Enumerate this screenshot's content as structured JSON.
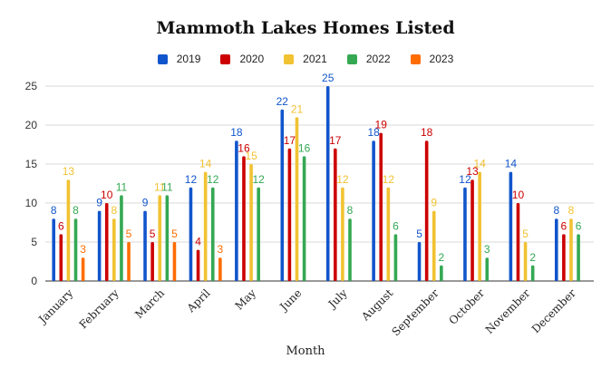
{
  "chart_data": {
    "type": "bar",
    "title": "Mammoth Lakes Homes Listed",
    "xlabel": "Month",
    "ylabel": "",
    "ylim": [
      0,
      25
    ],
    "yticks": [
      0,
      5,
      10,
      15,
      20,
      25
    ],
    "grid": true,
    "legend_position": "top",
    "categories": [
      "January",
      "February",
      "March",
      "April",
      "May",
      "June",
      "July",
      "August",
      "September",
      "October",
      "November",
      "December"
    ],
    "series": [
      {
        "name": "2019",
        "color": "#1155cc",
        "values": [
          8,
          9,
          9,
          12,
          18,
          22,
          25,
          18,
          5,
          12,
          14,
          8
        ]
      },
      {
        "name": "2020",
        "color": "#cc0000",
        "values": [
          6,
          10,
          5,
          4,
          16,
          17,
          17,
          19,
          18,
          13,
          10,
          6
        ]
      },
      {
        "name": "2021",
        "color": "#f1c232",
        "values": [
          13,
          8,
          11,
          14,
          15,
          21,
          12,
          12,
          9,
          14,
          5,
          8
        ]
      },
      {
        "name": "2022",
        "color": "#34a853",
        "values": [
          8,
          11,
          11,
          12,
          12,
          16,
          8,
          6,
          2,
          3,
          2,
          6
        ]
      },
      {
        "name": "2023",
        "color": "#ff6d01",
        "values": [
          3,
          5,
          5,
          3,
          null,
          null,
          null,
          null,
          null,
          null,
          null,
          null
        ]
      }
    ]
  }
}
